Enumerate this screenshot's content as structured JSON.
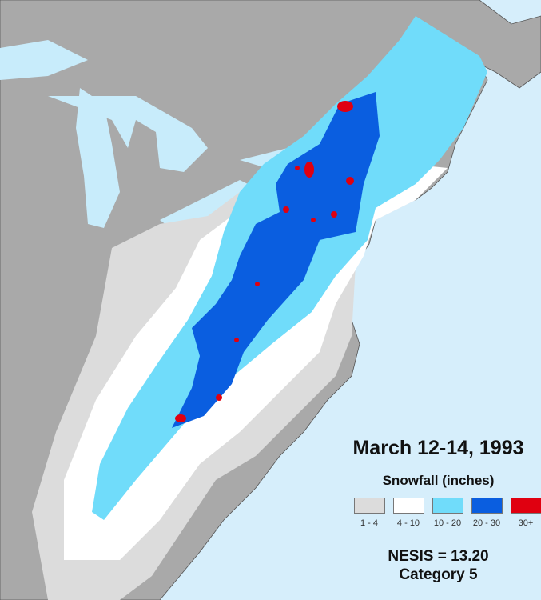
{
  "title": "March 12-14, 1993",
  "legend": {
    "title": "Snowfall (inches)",
    "items": [
      {
        "label": "1 - 4",
        "color": "#dcdcdc"
      },
      {
        "label": "4 - 10",
        "color": "#ffffff"
      },
      {
        "label": "10 - 20",
        "color": "#70dcfa"
      },
      {
        "label": "20 - 30",
        "color": "#0a5ee0"
      },
      {
        "label": "30+",
        "color": "#e00010"
      }
    ]
  },
  "nesis": "NESIS = 13.20",
  "category": "Category 5",
  "colors": {
    "ocean": "#d6eefb",
    "land": "#a9a9a9",
    "lakes": "#c8ecfb"
  }
}
